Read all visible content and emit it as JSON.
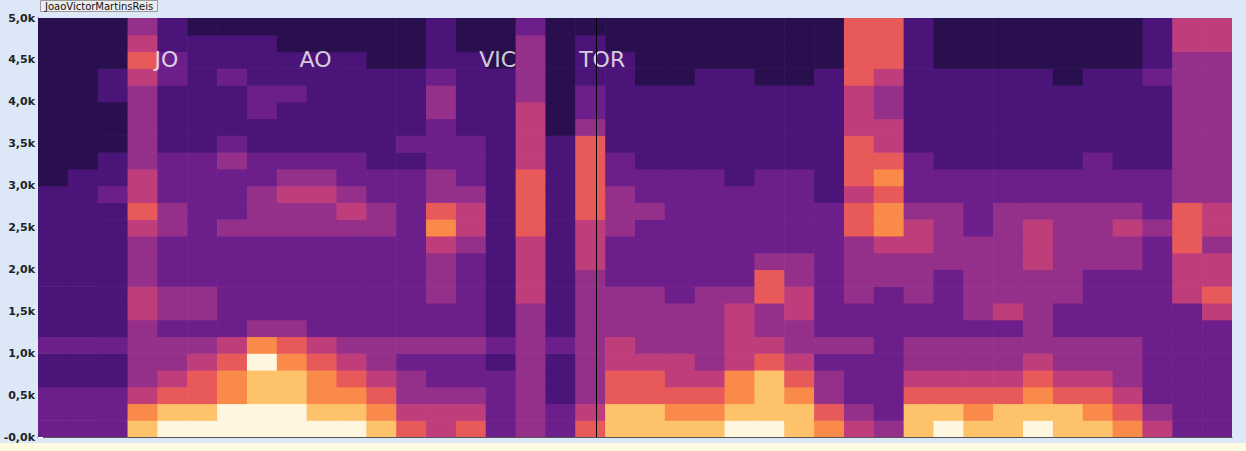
{
  "chart_data": {
    "type": "spectrogram",
    "title": "JoaoVictorMartinsReis",
    "xlim": [
      0,
      40
    ],
    "ylim": [
      0,
      5000
    ],
    "yticks": [
      {
        "value": 0,
        "label": "-0,0k"
      },
      {
        "value": 500,
        "label": "0,5k"
      },
      {
        "value": 1000,
        "label": "1,0k"
      },
      {
        "value": 1500,
        "label": "1,5k"
      },
      {
        "value": 2000,
        "label": "2,0k"
      },
      {
        "value": 2500,
        "label": "2,5k"
      },
      {
        "value": 3000,
        "label": "3,0k"
      },
      {
        "value": 3500,
        "label": "3,5k"
      },
      {
        "value": 4000,
        "label": "4,0k"
      },
      {
        "value": 4500,
        "label": "4,5k"
      },
      {
        "value": 5000,
        "label": "5,0k"
      }
    ],
    "tick_labels": "y",
    "grid": false,
    "xbins": [
      0,
      1,
      2,
      3,
      4,
      5,
      6,
      7,
      8,
      9,
      10,
      11,
      12,
      13,
      14,
      15,
      16,
      17,
      18,
      19,
      20,
      21,
      22,
      23,
      24,
      25,
      26,
      27,
      28,
      29,
      30,
      31,
      32,
      33,
      34,
      35,
      36,
      37,
      38,
      39,
      40
    ],
    "ybins": [
      0,
      200,
      400,
      600,
      800,
      1000,
      1200,
      1400,
      1600,
      1800,
      2000,
      2200,
      2400,
      2600,
      2800,
      3000,
      3200,
      3400,
      3600,
      3800,
      4000,
      4200,
      4400,
      4600,
      4800,
      5000
    ],
    "zlim": [
      0,
      9
    ],
    "cells": [
      [
        3,
        3,
        3,
        2,
        2,
        3,
        2,
        2,
        2,
        2,
        2,
        2,
        2,
        2,
        2,
        1,
        1,
        1,
        1,
        1,
        1,
        1,
        1,
        1,
        1
      ],
      [
        3,
        3,
        3,
        2,
        2,
        3,
        2,
        2,
        2,
        2,
        2,
        2,
        2,
        2,
        2,
        2,
        1,
        1,
        1,
        1,
        1,
        1,
        1,
        1,
        1
      ],
      [
        3,
        3,
        3,
        2,
        2,
        3,
        2,
        2,
        2,
        2,
        2,
        2,
        2,
        2,
        3,
        2,
        2,
        1,
        1,
        1,
        2,
        2,
        1,
        1,
        1
      ],
      [
        8,
        7,
        5,
        4,
        4,
        4,
        4,
        5,
        5,
        4,
        4,
        4,
        5,
        6,
        5,
        5,
        4,
        4,
        4,
        4,
        4,
        5,
        6,
        5,
        4
      ],
      [
        9,
        8,
        6,
        5,
        4,
        4,
        3,
        4,
        4,
        3,
        3,
        3,
        4,
        4,
        3,
        3,
        3,
        2,
        2,
        2,
        2,
        3,
        3,
        2,
        2
      ],
      [
        9,
        8,
        6,
        6,
        5,
        4,
        3,
        4,
        4,
        3,
        3,
        3,
        3,
        3,
        3,
        3,
        3,
        2,
        2,
        2,
        2,
        2,
        2,
        2,
        1
      ],
      [
        9,
        9,
        7,
        7,
        6,
        5,
        3,
        3,
        3,
        3,
        3,
        3,
        4,
        3,
        3,
        3,
        4,
        3,
        2,
        2,
        2,
        3,
        2,
        2,
        1
      ],
      [
        9,
        9,
        8,
        8,
        9,
        7,
        4,
        3,
        3,
        3,
        3,
        3,
        4,
        4,
        4,
        3,
        3,
        2,
        2,
        3,
        3,
        2,
        2,
        2,
        1
      ],
      [
        9,
        9,
        8,
        8,
        7,
        6,
        4,
        3,
        3,
        3,
        3,
        3,
        4,
        4,
        5,
        4,
        3,
        2,
        2,
        2,
        3,
        2,
        2,
        1,
        1
      ],
      [
        9,
        8,
        7,
        7,
        6,
        5,
        3,
        3,
        3,
        3,
        3,
        3,
        4,
        4,
        5,
        4,
        3,
        2,
        2,
        2,
        2,
        2,
        2,
        1,
        1
      ],
      [
        9,
        8,
        7,
        6,
        5,
        4,
        3,
        3,
        3,
        3,
        3,
        3,
        4,
        5,
        4,
        3,
        3,
        2,
        2,
        2,
        2,
        2,
        2,
        1,
        1
      ],
      [
        8,
        7,
        6,
        5,
        4,
        4,
        3,
        3,
        3,
        3,
        3,
        3,
        4,
        4,
        3,
        3,
        2,
        2,
        2,
        2,
        2,
        2,
        1,
        1,
        1
      ],
      [
        6,
        5,
        4,
        4,
        3,
        4,
        3,
        3,
        3,
        3,
        3,
        3,
        3,
        3,
        3,
        3,
        2,
        3,
        2,
        2,
        2,
        2,
        1,
        1,
        1
      ],
      [
        5,
        5,
        4,
        3,
        3,
        4,
        3,
        3,
        4,
        4,
        4,
        5,
        7,
        6,
        4,
        4,
        3,
        3,
        3,
        4,
        4,
        3,
        2,
        2,
        2
      ],
      [
        6,
        5,
        4,
        3,
        3,
        4,
        3,
        3,
        3,
        3,
        3,
        4,
        5,
        5,
        4,
        3,
        3,
        3,
        2,
        2,
        2,
        2,
        2,
        1,
        1
      ],
      [
        3,
        3,
        3,
        3,
        2,
        3,
        2,
        2,
        2,
        2,
        2,
        2,
        2,
        2,
        2,
        2,
        2,
        2,
        2,
        2,
        2,
        2,
        1,
        1,
        1
      ],
      [
        4,
        4,
        4,
        4,
        4,
        4,
        4,
        4,
        5,
        5,
        5,
        5,
        6,
        6,
        6,
        6,
        5,
        5,
        5,
        5,
        4,
        4,
        4,
        4,
        3
      ],
      [
        3,
        3,
        2,
        2,
        2,
        3,
        2,
        2,
        2,
        2,
        2,
        2,
        2,
        2,
        2,
        2,
        2,
        2,
        1,
        1,
        1,
        1,
        1,
        1,
        1
      ],
      [
        6,
        5,
        4,
        4,
        4,
        4,
        4,
        4,
        4,
        4,
        5,
        5,
        5,
        6,
        6,
        6,
        6,
        6,
        4,
        3,
        3,
        2,
        2,
        2,
        1
      ],
      [
        8,
        8,
        6,
        6,
        5,
        5,
        4,
        4,
        4,
        3,
        3,
        3,
        4,
        4,
        4,
        3,
        3,
        2,
        2,
        2,
        2,
        2,
        2,
        1,
        1
      ],
      [
        8,
        8,
        6,
        6,
        5,
        4,
        4,
        4,
        4,
        3,
        3,
        3,
        3,
        4,
        3,
        3,
        2,
        2,
        2,
        2,
        2,
        1,
        1,
        1,
        1
      ],
      [
        8,
        7,
        6,
        5,
        5,
        4,
        4,
        4,
        3,
        3,
        3,
        3,
        3,
        3,
        3,
        3,
        2,
        2,
        2,
        2,
        2,
        1,
        1,
        1,
        1
      ],
      [
        8,
        7,
        6,
        5,
        4,
        4,
        4,
        4,
        4,
        3,
        3,
        3,
        3,
        3,
        3,
        3,
        2,
        2,
        2,
        2,
        2,
        2,
        1,
        1,
        1
      ],
      [
        9,
        8,
        7,
        7,
        5,
        5,
        5,
        5,
        4,
        3,
        3,
        3,
        3,
        3,
        3,
        2,
        2,
        2,
        2,
        2,
        2,
        2,
        1,
        1,
        1
      ],
      [
        9,
        8,
        8,
        8,
        6,
        5,
        4,
        4,
        6,
        6,
        4,
        3,
        3,
        3,
        3,
        3,
        2,
        2,
        2,
        2,
        2,
        1,
        1,
        1,
        1
      ],
      [
        8,
        8,
        7,
        6,
        5,
        4,
        4,
        5,
        5,
        4,
        4,
        3,
        3,
        3,
        3,
        3,
        2,
        2,
        2,
        2,
        2,
        1,
        1,
        1,
        1
      ],
      [
        7,
        6,
        4,
        4,
        3,
        4,
        3,
        3,
        3,
        3,
        3,
        3,
        3,
        3,
        2,
        2,
        2,
        2,
        2,
        2,
        2,
        2,
        1,
        1,
        1
      ],
      [
        5,
        4,
        3,
        3,
        3,
        4,
        3,
        3,
        4,
        4,
        4,
        4,
        6,
        6,
        5,
        6,
        6,
        6,
        5,
        5,
        5,
        6,
        6,
        6,
        6
      ],
      [
        4,
        3,
        3,
        3,
        3,
        3,
        3,
        3,
        3,
        4,
        4,
        5,
        7,
        7,
        6,
        7,
        6,
        5,
        5,
        4,
        4,
        5,
        6,
        6,
        6
      ],
      [
        8,
        8,
        6,
        5,
        4,
        4,
        3,
        3,
        4,
        4,
        4,
        5,
        5,
        4,
        3,
        3,
        3,
        2,
        2,
        2,
        2,
        2,
        2,
        2,
        2
      ],
      [
        9,
        8,
        6,
        5,
        4,
        4,
        3,
        3,
        3,
        3,
        4,
        4,
        4,
        4,
        3,
        3,
        2,
        2,
        2,
        2,
        2,
        2,
        1,
        1,
        1
      ],
      [
        8,
        7,
        6,
        5,
        4,
        4,
        3,
        4,
        4,
        4,
        4,
        4,
        3,
        3,
        3,
        3,
        2,
        2,
        2,
        2,
        2,
        2,
        1,
        1,
        1
      ],
      [
        8,
        8,
        6,
        5,
        4,
        4,
        3,
        5,
        4,
        4,
        4,
        4,
        4,
        4,
        3,
        3,
        2,
        2,
        2,
        2,
        2,
        2,
        1,
        1,
        1
      ],
      [
        9,
        8,
        7,
        6,
        5,
        4,
        4,
        4,
        4,
        4,
        5,
        5,
        5,
        4,
        3,
        3,
        2,
        2,
        2,
        2,
        2,
        2,
        1,
        1,
        1
      ],
      [
        8,
        8,
        6,
        5,
        4,
        4,
        3,
        3,
        4,
        4,
        4,
        4,
        4,
        4,
        3,
        3,
        2,
        2,
        2,
        2,
        2,
        1,
        1,
        1,
        1
      ],
      [
        8,
        7,
        6,
        5,
        4,
        4,
        3,
        3,
        3,
        3,
        4,
        4,
        4,
        4,
        3,
        3,
        3,
        2,
        2,
        2,
        2,
        2,
        1,
        1,
        1
      ],
      [
        7,
        6,
        5,
        4,
        4,
        4,
        3,
        3,
        3,
        3,
        4,
        4,
        5,
        4,
        3,
        3,
        2,
        2,
        2,
        2,
        2,
        2,
        1,
        1,
        1
      ],
      [
        5,
        4,
        3,
        3,
        3,
        3,
        3,
        3,
        3,
        3,
        3,
        3,
        4,
        3,
        3,
        3,
        2,
        2,
        2,
        2,
        2,
        3,
        2,
        2,
        2
      ],
      [
        3,
        3,
        3,
        3,
        3,
        3,
        3,
        3,
        5,
        5,
        5,
        6,
        6,
        6,
        4,
        4,
        4,
        4,
        4,
        4,
        4,
        4,
        4,
        5,
        5
      ],
      [
        3,
        3,
        3,
        3,
        3,
        3,
        3,
        5,
        6,
        5,
        5,
        4,
        5,
        5,
        4,
        4,
        4,
        4,
        4,
        4,
        4,
        4,
        4,
        5,
        5
      ]
    ],
    "cursor_x": 18.7,
    "annotations": [
      {
        "text": "JO",
        "x": 4.3,
        "y": 4500
      },
      {
        "text": "AO",
        "x": 9.3,
        "y": 4500
      },
      {
        "text": "VIC",
        "x": 15.4,
        "y": 4500
      },
      {
        "text": "TOR",
        "x": 18.9,
        "y": 4500
      }
    ]
  }
}
